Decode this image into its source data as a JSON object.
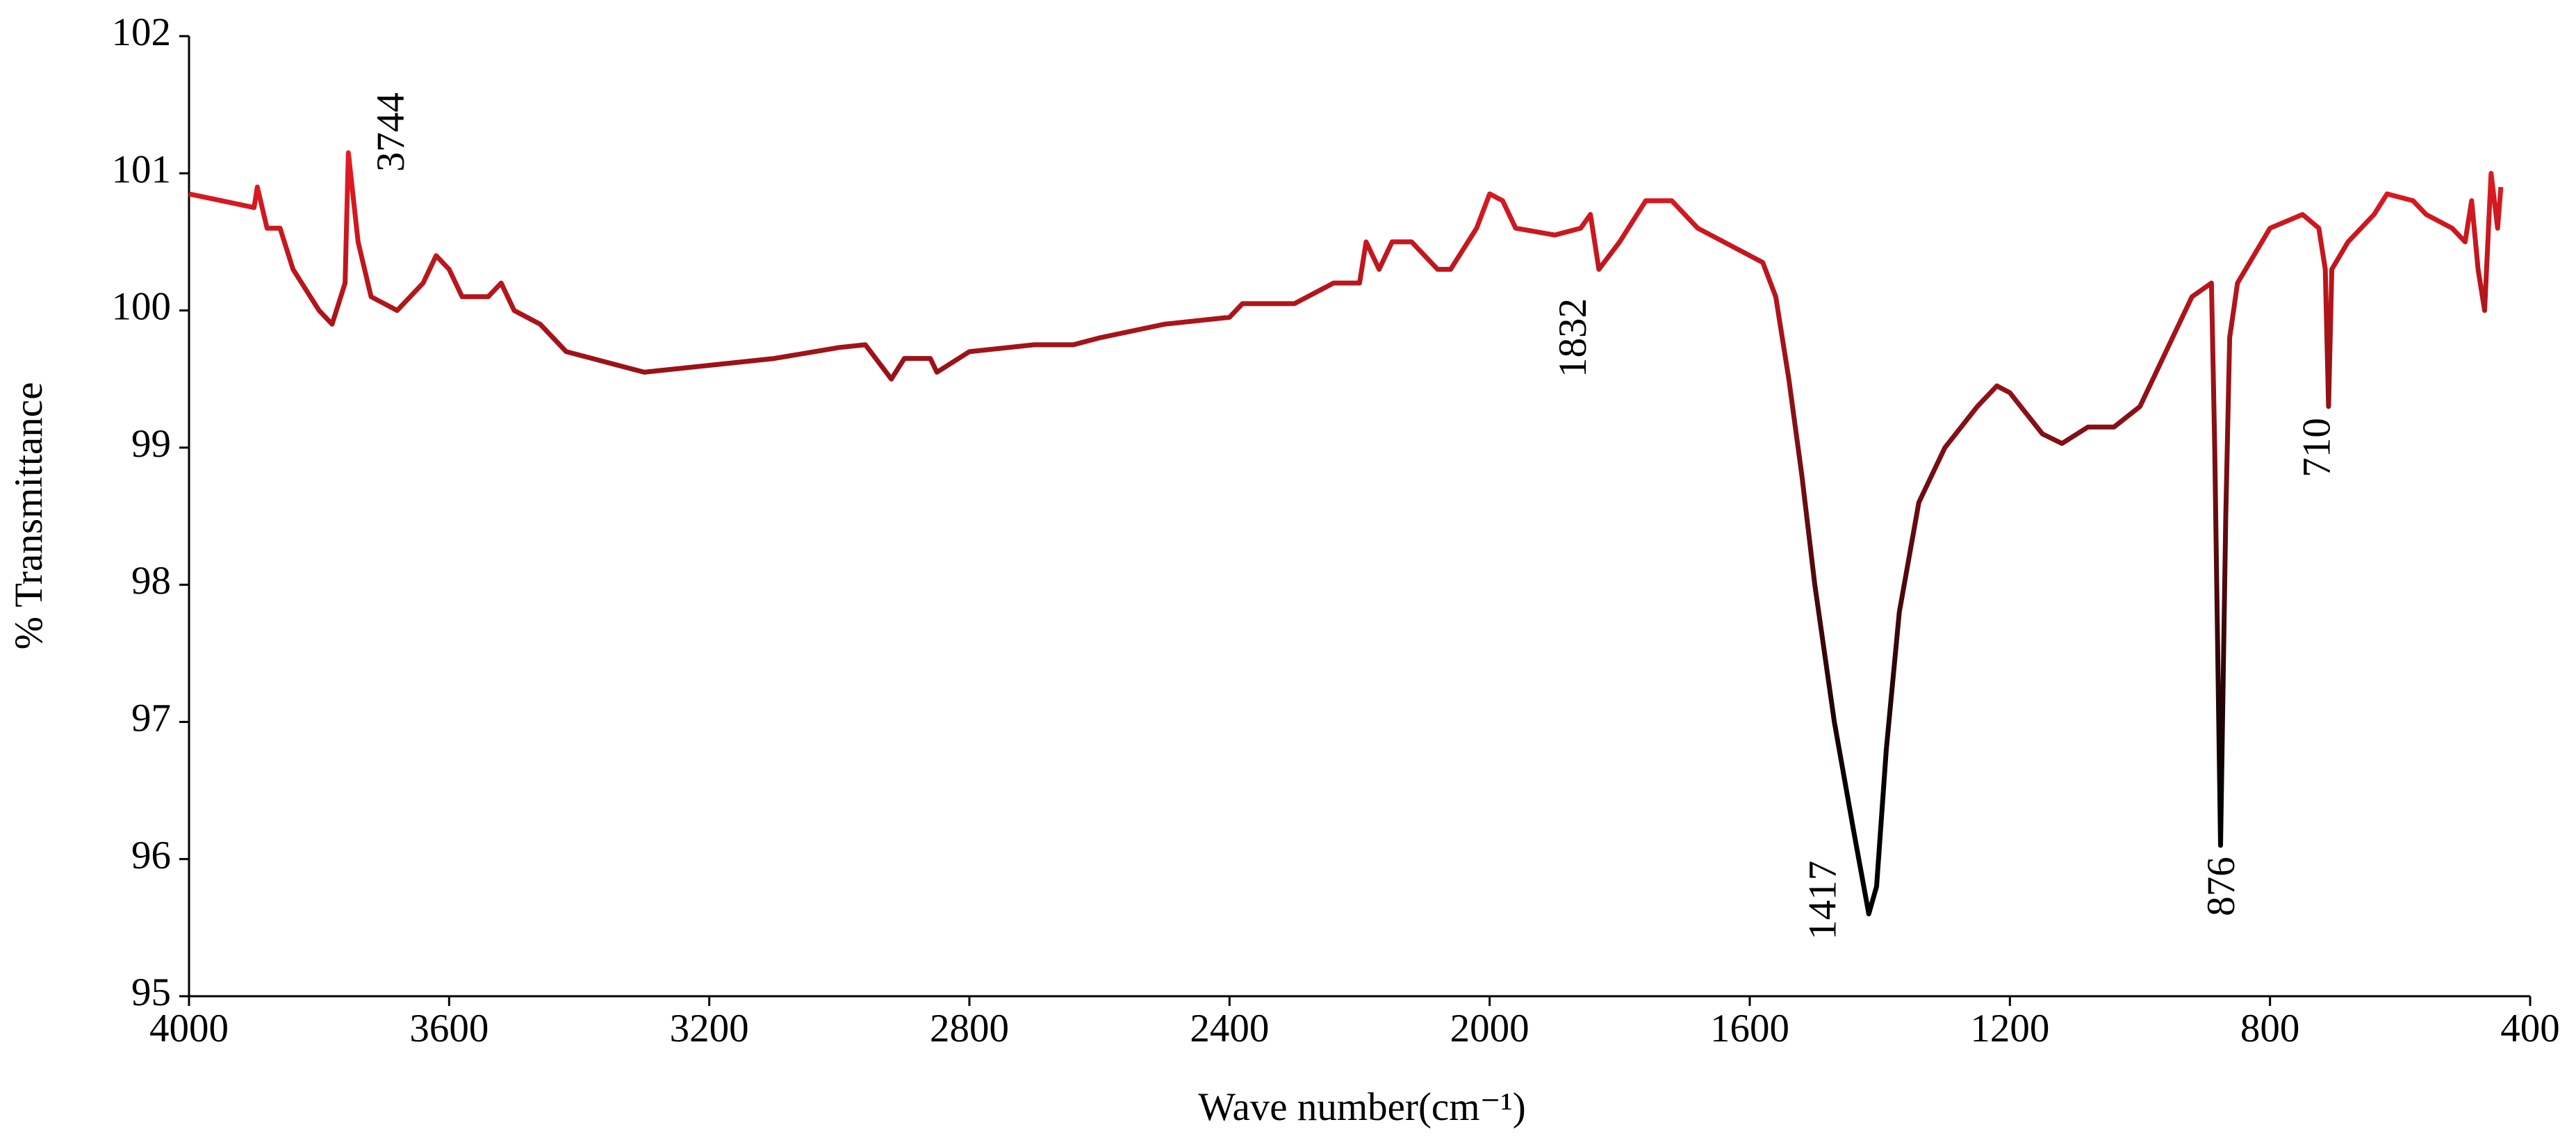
{
  "chart_data": {
    "type": "line",
    "x_label": "Wave number(cm⁻¹)",
    "y_label": "% Transmittance",
    "xlim": [
      4000,
      400
    ],
    "ylim": [
      95,
      102
    ],
    "xticks": [
      4000,
      3600,
      3200,
      2800,
      2400,
      2000,
      1600,
      1200,
      800,
      400
    ],
    "yticks": [
      95,
      96,
      97,
      98,
      99,
      100,
      101,
      102
    ],
    "grid": false,
    "series": [
      {
        "color": "#ee1c24",
        "low_color": "#000000",
        "x": [
          4000,
          3950,
          3900,
          3895,
          3880,
          3860,
          3840,
          3800,
          3780,
          3760,
          3755,
          3740,
          3720,
          3700,
          3680,
          3640,
          3620,
          3600,
          3580,
          3540,
          3520,
          3500,
          3460,
          3420,
          3380,
          3300,
          3200,
          3100,
          3000,
          2960,
          2920,
          2900,
          2860,
          2850,
          2800,
          2700,
          2640,
          2600,
          2500,
          2400,
          2380,
          2300,
          2240,
          2200,
          2190,
          2170,
          2150,
          2120,
          2080,
          2060,
          2020,
          2000,
          1980,
          1960,
          1900,
          1860,
          1845,
          1832,
          1800,
          1760,
          1720,
          1680,
          1620,
          1580,
          1560,
          1540,
          1520,
          1500,
          1470,
          1440,
          1417,
          1405,
          1390,
          1370,
          1340,
          1300,
          1250,
          1220,
          1200,
          1150,
          1120,
          1080,
          1040,
          1000,
          960,
          920,
          890,
          885,
          876,
          868,
          862,
          850,
          800,
          750,
          725,
          715,
          710,
          705,
          680,
          640,
          620,
          580,
          560,
          520,
          500,
          490,
          480,
          470,
          460,
          450,
          445
        ],
        "values": [
          100.85,
          100.8,
          100.75,
          100.9,
          100.6,
          100.6,
          100.3,
          100.0,
          99.9,
          100.2,
          101.15,
          100.5,
          100.1,
          100.05,
          100.0,
          100.2,
          100.4,
          100.3,
          100.1,
          100.1,
          100.2,
          100.0,
          99.9,
          99.7,
          99.65,
          99.55,
          99.6,
          99.65,
          99.73,
          99.75,
          99.5,
          99.65,
          99.65,
          99.55,
          99.7,
          99.75,
          99.75,
          99.8,
          99.9,
          99.95,
          100.05,
          100.05,
          100.2,
          100.2,
          100.5,
          100.3,
          100.5,
          100.5,
          100.3,
          100.3,
          100.6,
          100.85,
          100.8,
          100.6,
          100.55,
          100.6,
          100.7,
          100.3,
          100.5,
          100.8,
          100.8,
          100.6,
          100.45,
          100.35,
          100.1,
          99.5,
          98.8,
          98.0,
          97.0,
          96.2,
          95.6,
          95.8,
          96.8,
          97.8,
          98.6,
          99.0,
          99.3,
          99.45,
          99.4,
          99.1,
          99.03,
          99.15,
          99.15,
          99.3,
          99.7,
          100.1,
          100.2,
          99.0,
          96.1,
          98.5,
          99.8,
          100.2,
          100.6,
          100.7,
          100.6,
          100.3,
          99.3,
          100.3,
          100.5,
          100.7,
          100.85,
          100.8,
          100.7,
          100.6,
          100.5,
          100.8,
          100.3,
          100.0,
          101.0,
          100.6,
          100.9
        ]
      }
    ],
    "annotations": [
      {
        "text": "3744",
        "x": 3684,
        "y": 101.3
      },
      {
        "text": "1832",
        "x": 1866,
        "y": 99.8
      },
      {
        "text": "1417",
        "x": 1482,
        "y": 95.7
      },
      {
        "text": "876",
        "x": 869,
        "y": 95.8
      },
      {
        "text": "710",
        "x": 722,
        "y": 99.0
      }
    ]
  }
}
